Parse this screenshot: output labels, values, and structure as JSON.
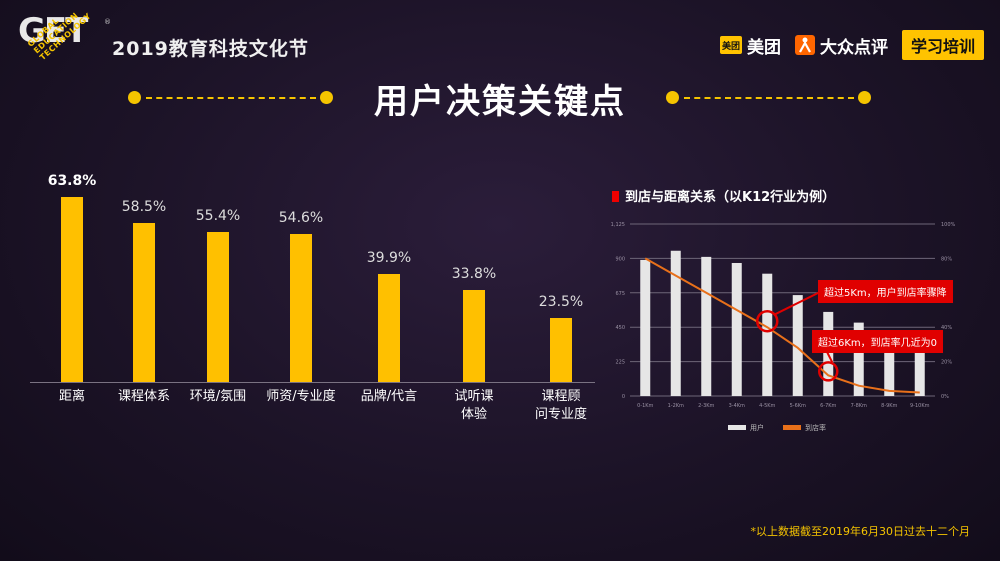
{
  "header": {
    "logo_text": "GET",
    "logo_tm": "®",
    "logo_words": [
      "GLOBAL",
      "EDUCATION",
      "TECHNOLOGY"
    ],
    "festival": "2019教育科技文化节",
    "brand_meituan_icon": "美团",
    "brand_meituan": "美团",
    "brand_dianping_icon": "dianping-icon",
    "brand_dianping": "大众点评",
    "tag": "学习培训"
  },
  "title": "用户决策关键点",
  "colors": {
    "accent": "#ffc000",
    "highlight": "#e00000",
    "line_orange": "#e8701a",
    "bar_gray": "#e6e6e6"
  },
  "chart_data": [
    {
      "type": "bar",
      "title": "",
      "categories": [
        "距离",
        "课程体系",
        "环境/氛围",
        "师资/专业度",
        "品牌/代言",
        "试听课\n体验",
        "课程顾\n问专业度"
      ],
      "values": [
        63.8,
        58.5,
        55.4,
        54.6,
        39.9,
        33.8,
        23.5
      ],
      "value_labels": [
        "63.8%",
        "58.5%",
        "55.4%",
        "54.6%",
        "39.9%",
        "33.8%",
        "23.5%"
      ],
      "ylim": [
        0,
        70
      ],
      "grid": false
    },
    {
      "type": "bar+line",
      "title": "到店与距离关系（以K12行业为例）",
      "categories": [
        "0-1Km",
        "1-2Km",
        "2-3Km",
        "3-4Km",
        "4-5Km",
        "5-6Km",
        "6-7Km",
        "7-8Km",
        "8-9Km",
        "9-10Km"
      ],
      "y_ticks": [
        "0",
        "225",
        "450",
        "675",
        "900",
        "1,125"
      ],
      "y2_ticks": [
        "0%",
        "20%",
        "40%",
        "60%",
        "80%",
        "100%"
      ],
      "ylim": [
        0,
        1125
      ],
      "y2lim": [
        0,
        100
      ],
      "series": [
        {
          "name": "用户",
          "type": "bar",
          "values": [
            890,
            950,
            910,
            870,
            800,
            660,
            550,
            480,
            430,
            420
          ]
        },
        {
          "name": "到店率",
          "type": "line",
          "values": [
            80,
            70,
            60,
            50,
            40,
            28,
            12,
            6,
            3,
            2
          ]
        }
      ],
      "legend": "bottom",
      "grid": true,
      "annotations": [
        "超过5Km，用户到店率骤降",
        "超过6Km，到店率几近为0"
      ]
    }
  ],
  "footnote": "*以上数据截至2019年6月30日过去十二个月"
}
